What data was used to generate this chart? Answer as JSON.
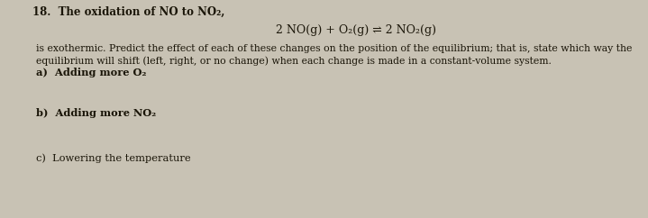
{
  "bg_color": "#c8c2b4",
  "text_color": "#1a1508",
  "question_number": "18.",
  "title_line": "  The oxidation of NO to NO₂,",
  "equation": "2 NO(g) + O₂(g) ⇌ 2 NO₂(g)",
  "body_line1": "is exothermic. Predict the effect of each of these changes on the position of the equilibrium; that is, state which way the",
  "body_line2": "equilibrium will shift (left, right, or no change) when each change is made in a constant-volume system.",
  "part_a": "a)  Adding more O₂",
  "part_b": "b)  Adding more NO₂",
  "part_c": "c)  Lowering the temperature",
  "figsize": [
    7.19,
    2.42
  ],
  "dpi": 100
}
